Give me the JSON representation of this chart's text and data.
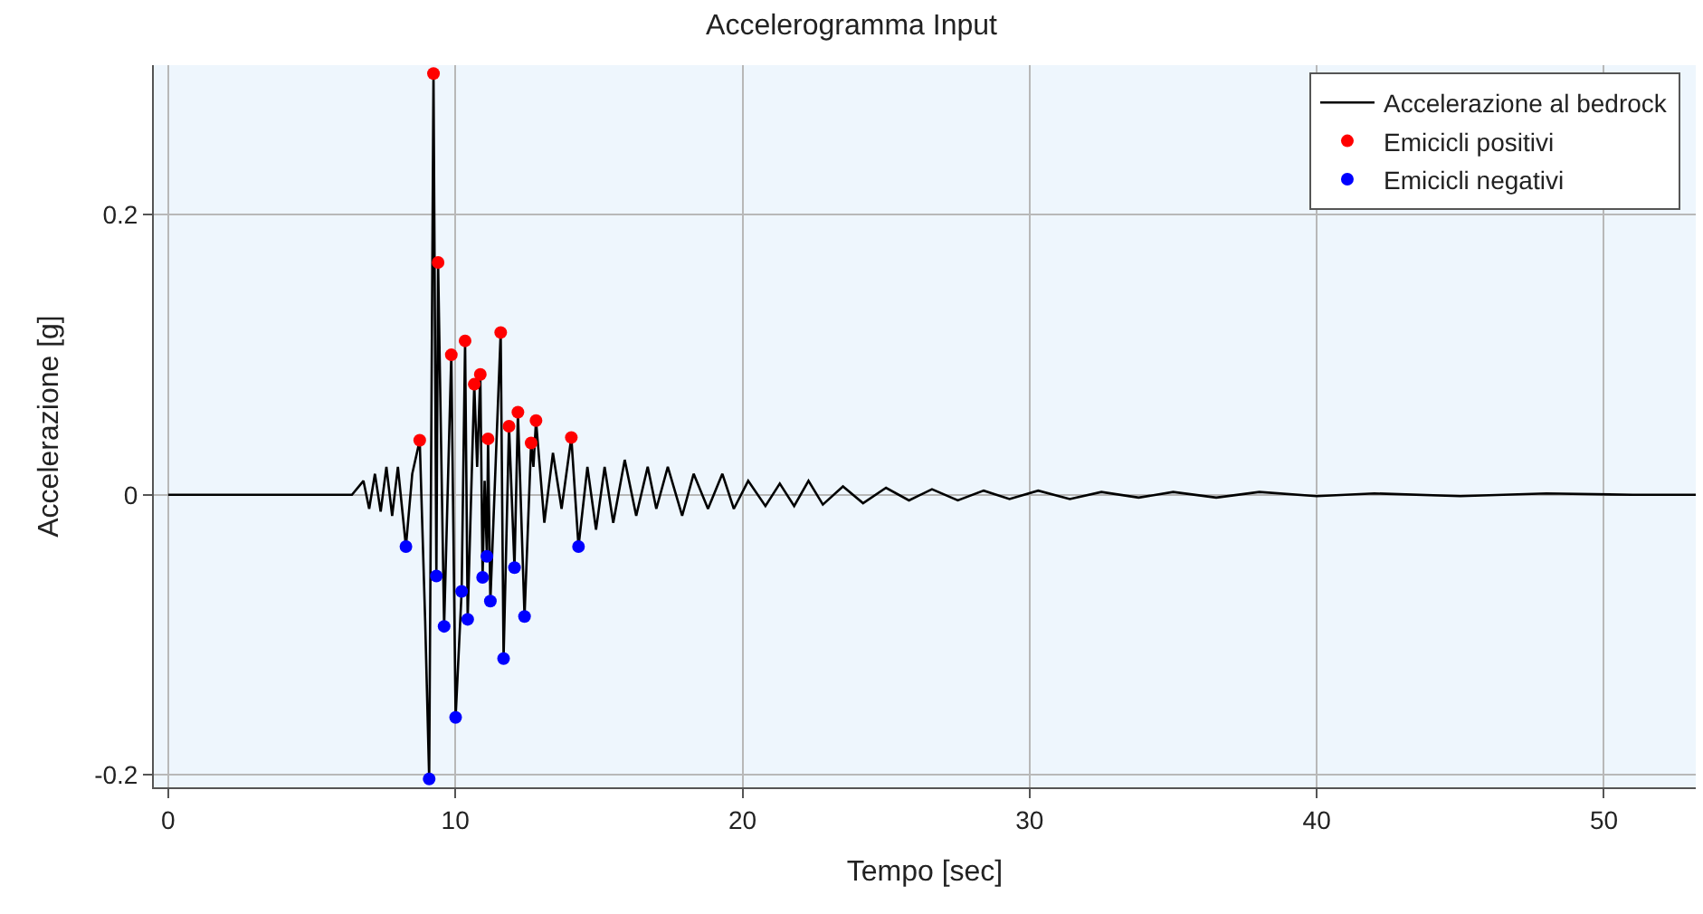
{
  "chart_data": {
    "type": "line",
    "title": "Accelerogramma Input",
    "xlabel": "Tempo [sec]",
    "ylabel": "Accelerazione [g]",
    "xlim": [
      -0.5,
      53.2
    ],
    "ylim": [
      -0.209,
      0.307
    ],
    "xticks": [
      0,
      10,
      20,
      30,
      40,
      50
    ],
    "yticks": [
      -0.2,
      0,
      0.2
    ],
    "grid": true,
    "legend": "top right",
    "series": [
      {
        "name": "Accelerazione al bedrock",
        "color": "#000000",
        "x": [
          0,
          6.4,
          6.8,
          7.0,
          7.2,
          7.4,
          7.6,
          7.8,
          8.0,
          8.28,
          8.5,
          8.76,
          8.95,
          9.09,
          9.24,
          9.34,
          9.4,
          9.61,
          9.86,
          10.01,
          10.22,
          10.34,
          10.43,
          10.66,
          10.76,
          10.87,
          10.95,
          11.02,
          11.1,
          11.14,
          11.22,
          11.58,
          11.68,
          11.87,
          12.06,
          12.18,
          12.41,
          12.64,
          12.72,
          12.81,
          13.1,
          13.4,
          13.7,
          14.04,
          14.29,
          14.6,
          14.9,
          15.2,
          15.5,
          15.9,
          16.3,
          16.7,
          17.0,
          17.4,
          17.9,
          18.3,
          18.8,
          19.3,
          19.7,
          20.2,
          20.8,
          21.3,
          21.8,
          22.3,
          22.8,
          23.5,
          24.2,
          25.0,
          25.8,
          26.6,
          27.5,
          28.4,
          29.3,
          30.3,
          31.4,
          32.5,
          33.8,
          35.0,
          36.5,
          38,
          40,
          42,
          45,
          48,
          51,
          53.2
        ],
        "values": [
          0,
          0,
          0.01,
          -0.01,
          0.015,
          -0.012,
          0.02,
          -0.015,
          0.02,
          -0.037,
          0.015,
          0.039,
          -0.09,
          -0.203,
          0.301,
          -0.058,
          0.166,
          -0.094,
          0.1,
          -0.159,
          -0.069,
          0.11,
          -0.089,
          0.079,
          0.02,
          0.086,
          -0.059,
          0.01,
          -0.044,
          0.04,
          -0.076,
          0.116,
          -0.117,
          0.049,
          -0.052,
          0.059,
          -0.087,
          0.037,
          0.02,
          0.053,
          -0.02,
          0.03,
          -0.01,
          0.041,
          -0.037,
          0.02,
          -0.025,
          0.02,
          -0.02,
          0.025,
          -0.015,
          0.02,
          -0.01,
          0.02,
          -0.015,
          0.015,
          -0.01,
          0.015,
          -0.01,
          0.01,
          -0.008,
          0.008,
          -0.008,
          0.01,
          -0.007,
          0.006,
          -0.006,
          0.005,
          -0.004,
          0.004,
          -0.004,
          0.003,
          -0.003,
          0.003,
          -0.003,
          0.002,
          -0.002,
          0.002,
          -0.002,
          0.002,
          -0.001,
          0.001,
          -0.001,
          0.001,
          0,
          0
        ]
      },
      {
        "name": "Emicicli positivi",
        "type": "scatter",
        "color": "#ff0000",
        "x": [
          8.76,
          9.24,
          9.4,
          9.86,
          10.34,
          10.66,
          10.87,
          11.14,
          11.58,
          11.87,
          12.18,
          12.64,
          12.81,
          14.04
        ],
        "values": [
          0.039,
          0.301,
          0.166,
          0.1,
          0.11,
          0.079,
          0.086,
          0.04,
          0.116,
          0.049,
          0.059,
          0.037,
          0.053,
          0.041
        ]
      },
      {
        "name": "Emicicli negativi",
        "type": "scatter",
        "color": "#0000ff",
        "x": [
          8.28,
          9.09,
          9.34,
          9.61,
          10.01,
          10.22,
          10.43,
          10.95,
          11.1,
          11.22,
          11.68,
          12.06,
          12.41,
          14.29
        ],
        "values": [
          -0.037,
          -0.203,
          -0.058,
          -0.094,
          -0.159,
          -0.069,
          -0.089,
          -0.059,
          -0.044,
          -0.076,
          -0.117,
          -0.052,
          -0.087,
          -0.037
        ]
      }
    ]
  }
}
